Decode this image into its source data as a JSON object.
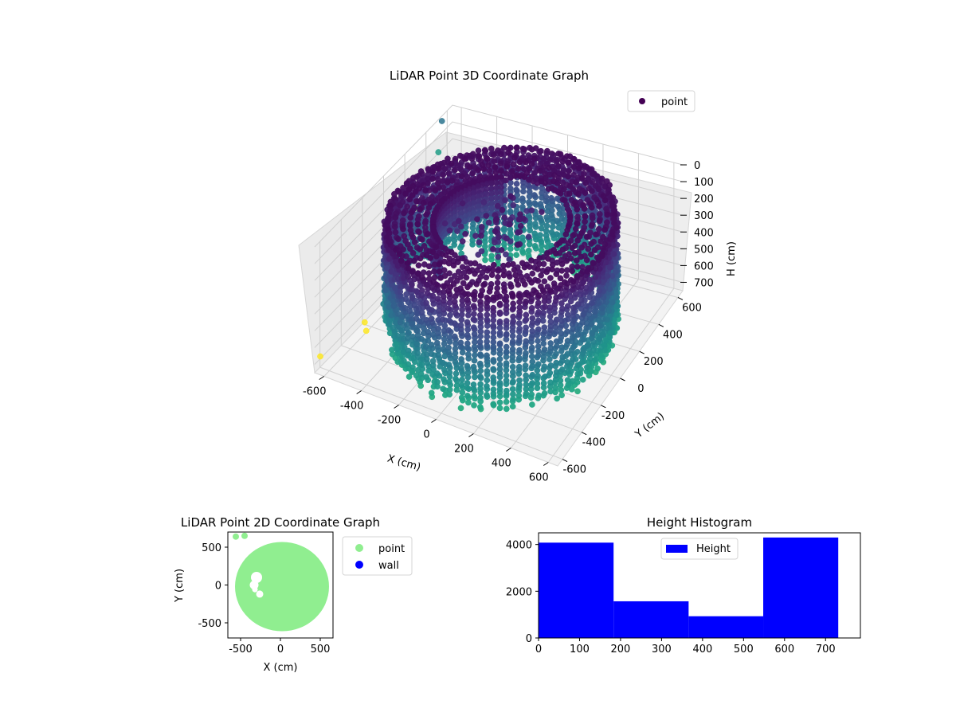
{
  "chart_data": [
    {
      "type": "scatter3d",
      "title": "LiDAR Point 3D Coordinate Graph",
      "xlabel": "X (cm)",
      "ylabel": "Y (cm)",
      "zlabel": "H (cm)",
      "xlim": [
        -650,
        650
      ],
      "ylim": [
        -650,
        650
      ],
      "zlim": [
        0,
        750
      ],
      "z_inverted": true,
      "xticks": [
        -600,
        -400,
        -200,
        0,
        200,
        400,
        600
      ],
      "yticks": [
        -600,
        -400,
        -200,
        0,
        200,
        400,
        600
      ],
      "zticks": [
        0,
        100,
        200,
        300,
        400,
        500,
        600,
        700
      ],
      "grid": true,
      "colormap": "viridis",
      "legend": {
        "location": "upper-right",
        "entries": [
          {
            "label": "point",
            "color": "#440154"
          }
        ]
      },
      "shape": {
        "description_free": false,
        "outer_radius": 550,
        "inner_radius_top": 330,
        "h_range": [
          0,
          730
        ]
      },
      "outlier_points": [
        {
          "x": -650,
          "y": 550,
          "h": 30
        },
        {
          "x": -640,
          "y": 500,
          "h": 180
        },
        {
          "x": -660,
          "y": 300,
          "h": 520
        },
        {
          "x": -650,
          "y": 320,
          "h": 400
        },
        {
          "x": -580,
          "y": -300,
          "h": 650
        },
        {
          "x": -560,
          "y": -320,
          "h": 680
        },
        {
          "x": -620,
          "y": -650,
          "h": 640
        }
      ]
    },
    {
      "type": "scatter",
      "title": "LiDAR Point 2D Coordinate Graph",
      "xlabel": "X (cm)",
      "ylabel": "Y (cm)",
      "xlim": [
        -660,
        660
      ],
      "ylim": [
        -700,
        700
      ],
      "xticks": [
        -500,
        0,
        500
      ],
      "yticks": [
        -500,
        0,
        500
      ],
      "series": [
        {
          "name": "point",
          "color": "#90ee90",
          "center": [
            0,
            0
          ],
          "radius": 590
        },
        {
          "name": "wall",
          "color": "#0000ff"
        }
      ],
      "legend": "outside-right"
    },
    {
      "type": "bar",
      "title": "Height Histogram",
      "xlabel": "",
      "ylabel": "",
      "xlim": [
        0,
        785
      ],
      "ylim": [
        0,
        4500
      ],
      "xticks": [
        0,
        100,
        200,
        300,
        400,
        500,
        600,
        700
      ],
      "yticks": [
        0,
        2000,
        4000
      ],
      "bins": [
        {
          "from": 0,
          "to": 183,
          "count": 4080
        },
        {
          "from": 183,
          "to": 366,
          "count": 1570
        },
        {
          "from": 366,
          "to": 548,
          "count": 930
        },
        {
          "from": 548,
          "to": 731,
          "count": 4300
        }
      ],
      "color": "#0000ff",
      "legend": {
        "location": "upper-center",
        "entries": [
          {
            "label": "Height",
            "color": "#0000ff"
          }
        ]
      }
    }
  ]
}
